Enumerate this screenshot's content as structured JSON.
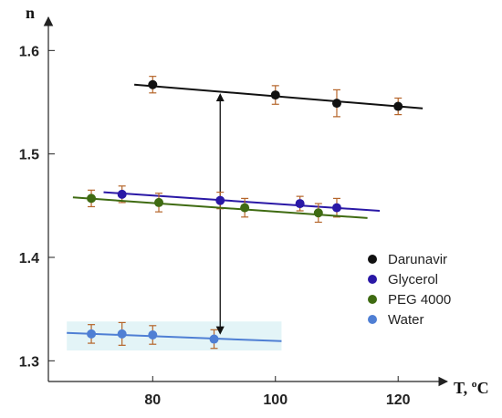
{
  "chart_data": {
    "type": "scatter",
    "xlabel": "T, ºC",
    "ylabel": "n",
    "xlim": [
      63,
      128
    ],
    "ylim": [
      1.28,
      1.625
    ],
    "x_ticks": [
      80,
      100,
      120
    ],
    "x_tick_labels": [
      "80",
      "100",
      "120"
    ],
    "y_ticks": [
      1.3,
      1.4,
      1.5,
      1.6
    ],
    "y_tick_labels": [
      "1.3",
      "1.4",
      "1.5",
      "1.6"
    ],
    "grid": false,
    "legend_position": "right",
    "series": [
      {
        "name": "Darunavir",
        "color": "#111111",
        "points": [
          {
            "x": 80,
            "y": 1.567,
            "err": 0.008
          },
          {
            "x": 100,
            "y": 1.557,
            "err": 0.009
          },
          {
            "x": 110,
            "y": 1.549,
            "err": 0.013
          },
          {
            "x": 120,
            "y": 1.546,
            "err": 0.008
          }
        ],
        "fit": [
          [
            77,
            1.567
          ],
          [
            124,
            1.544
          ]
        ]
      },
      {
        "name": "Glycerol",
        "color": "#2a18a6",
        "points": [
          {
            "x": 75,
            "y": 1.461,
            "err": 0.008
          },
          {
            "x": 91,
            "y": 1.455,
            "err": 0.008
          },
          {
            "x": 104,
            "y": 1.452,
            "err": 0.007
          },
          {
            "x": 110,
            "y": 1.448,
            "err": 0.009
          }
        ],
        "fit": [
          [
            72,
            1.463
          ],
          [
            117,
            1.445
          ]
        ]
      },
      {
        "name": "PEG 4000",
        "color": "#3f6b12",
        "points": [
          {
            "x": 70,
            "y": 1.457,
            "err": 0.008
          },
          {
            "x": 81,
            "y": 1.453,
            "err": 0.009
          },
          {
            "x": 95,
            "y": 1.448,
            "err": 0.009
          },
          {
            "x": 107,
            "y": 1.443,
            "err": 0.009
          }
        ],
        "fit": [
          [
            67,
            1.458
          ],
          [
            115,
            1.438
          ]
        ]
      },
      {
        "name": "Water",
        "color": "#4f7fd4",
        "points": [
          {
            "x": 70,
            "y": 1.326,
            "err": 0.009
          },
          {
            "x": 75,
            "y": 1.326,
            "err": 0.011
          },
          {
            "x": 80,
            "y": 1.325,
            "err": 0.009
          },
          {
            "x": 90,
            "y": 1.321,
            "err": 0.009
          }
        ],
        "fit": [
          [
            66,
            1.327
          ],
          [
            101,
            1.319
          ]
        ]
      }
    ],
    "annotations": [
      {
        "type": "double-arrow",
        "x": 91,
        "y_from": 1.324,
        "y_to": 1.56
      }
    ]
  }
}
